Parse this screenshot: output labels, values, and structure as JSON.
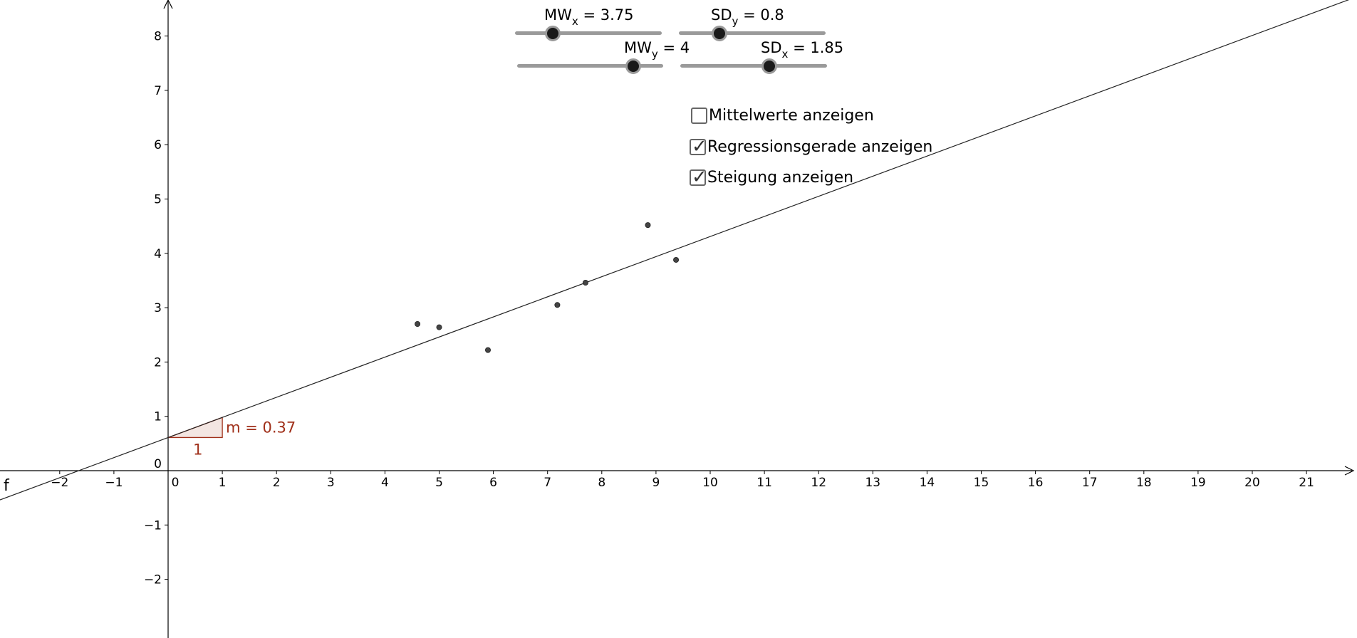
{
  "sliders": {
    "mw_x": {
      "prefix": "MW",
      "sub": "x",
      "suffix": " = 3.75",
      "value": 3.75
    },
    "sd_y": {
      "prefix": "SD",
      "sub": "y",
      "suffix": " = 0.8",
      "value": 0.8
    },
    "mw_y": {
      "prefix": "MW",
      "sub": "y",
      "suffix": " = 4",
      "value": 4
    },
    "sd_x": {
      "prefix": "SD",
      "sub": "x",
      "suffix": " = 1.85",
      "value": 1.85
    }
  },
  "checkboxes": [
    {
      "label": "Mittelwerte anzeigen",
      "checked": false
    },
    {
      "label": "Regressionsgerade anzeigen",
      "checked": true
    },
    {
      "label": "Steigung anzeigen",
      "checked": true
    }
  ],
  "colors": {
    "slope": "#a0301a",
    "slope_fill": "#f3e6e2",
    "axis": "#000000",
    "line": "#222222",
    "point": "#444444"
  },
  "chart_data": {
    "type": "scatter",
    "x_ticks": [
      "−2",
      "−1",
      "0",
      "1",
      "2",
      "3",
      "4",
      "5",
      "6",
      "7",
      "8",
      "9",
      "10",
      "11",
      "12",
      "13",
      "14",
      "15",
      "16",
      "17",
      "18",
      "19",
      "20",
      "21"
    ],
    "y_ticks": [
      "−2",
      "−1",
      "0",
      "1",
      "2",
      "3",
      "4",
      "5",
      "6",
      "7",
      "8"
    ],
    "xlim": [
      -3.1,
      21.9
    ],
    "ylim": [
      -3.0,
      8.7
    ],
    "points": [
      {
        "x": 4.6,
        "y": 2.7
      },
      {
        "x": 5.0,
        "y": 2.64
      },
      {
        "x": 5.9,
        "y": 2.22
      },
      {
        "x": 7.18,
        "y": 3.05
      },
      {
        "x": 7.7,
        "y": 3.46
      },
      {
        "x": 8.85,
        "y": 4.52
      },
      {
        "x": 9.37,
        "y": 3.88
      }
    ],
    "regression_line": {
      "name": "f",
      "slope": 0.37,
      "intercept": 0.61
    },
    "slope_triangle": {
      "label": "m = 0.37",
      "run_label": "1"
    }
  }
}
